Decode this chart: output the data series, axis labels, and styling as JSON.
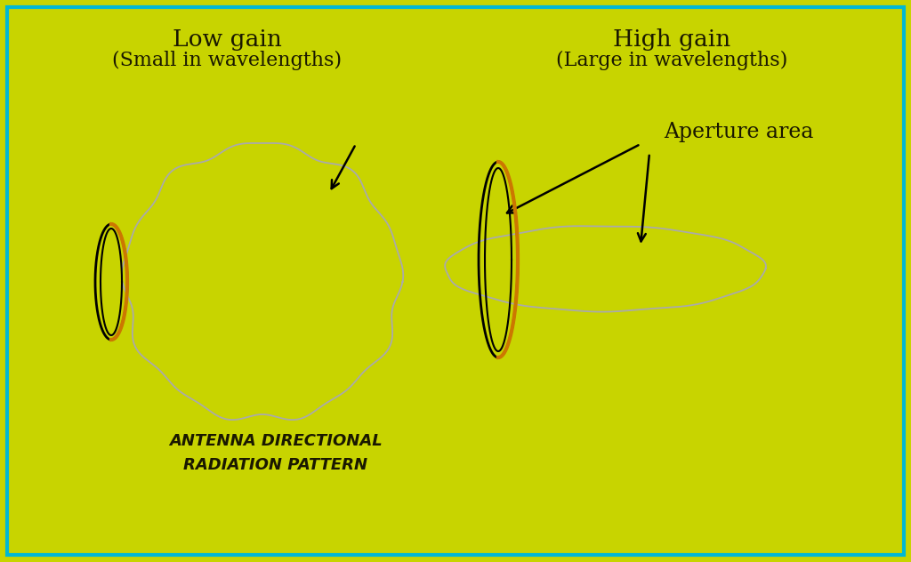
{
  "bg_color": "#c8d400",
  "border_color": "#00b8d4",
  "text_color": "#1a1800",
  "low_gain_title": "Low gain",
  "low_gain_sub": "(Small in wavelengths)",
  "high_gain_title": "High gain",
  "high_gain_sub": "(Large in wavelengths)",
  "aperture_label": "Aperture area",
  "radiation_label1": "ANTENNA DIRECTIONAL",
  "radiation_label2": "RADIATION PATTERN",
  "fig_width": 10.24,
  "fig_height": 6.32,
  "dpi": 100
}
